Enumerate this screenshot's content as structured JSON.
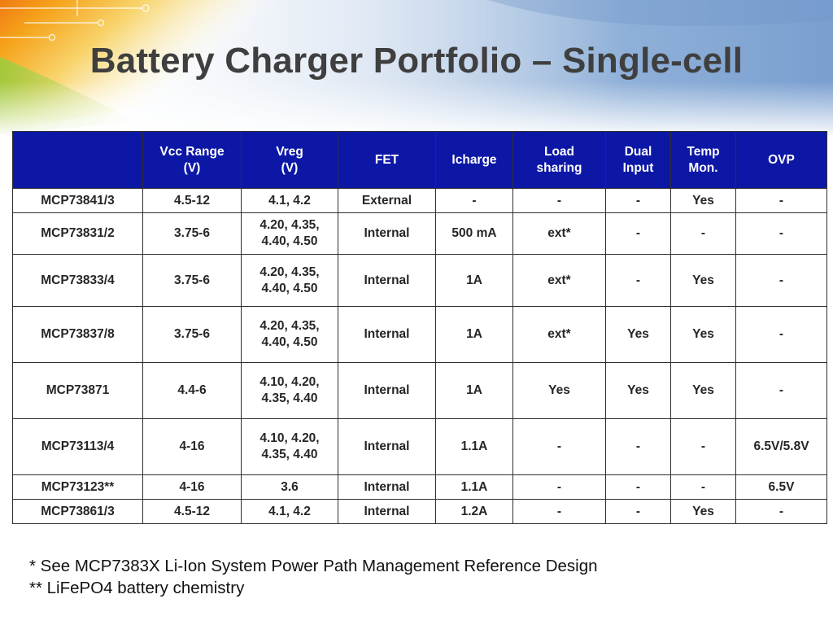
{
  "slide": {
    "title": "Battery Charger Portfolio – Single-cell"
  },
  "table": {
    "headers": [
      [
        "",
        ""
      ],
      [
        "Vcc Range",
        "(V)"
      ],
      [
        "Vreg",
        "(V)"
      ],
      [
        "FET",
        ""
      ],
      [
        "Icharge",
        ""
      ],
      [
        "Load",
        "sharing"
      ],
      [
        "Dual",
        "Input"
      ],
      [
        "Temp",
        "Mon."
      ],
      [
        "OVP",
        ""
      ]
    ],
    "rows": [
      [
        "MCP73841/3",
        "4.5-12",
        "4.1, 4.2",
        "External",
        "-",
        "-",
        "-",
        "Yes",
        "-"
      ],
      [
        "MCP73831/2",
        "3.75-6",
        "4.20, 4.35,\n4.40, 4.50",
        "Internal",
        "500 mA",
        "ext*",
        "-",
        "-",
        "-"
      ],
      [
        "MCP73833/4",
        "3.75-6",
        "4.20, 4.35,\n4.40, 4.50",
        "Internal",
        "1A",
        "ext*",
        "-",
        "Yes",
        "-"
      ],
      [
        "MCP73837/8",
        "3.75-6",
        "4.20, 4.35,\n4.40, 4.50",
        "Internal",
        "1A",
        "ext*",
        "Yes",
        "Yes",
        "-"
      ],
      [
        "MCP73871",
        "4.4-6",
        "4.10, 4.20,\n4.35, 4.40",
        "Internal",
        "1A",
        "Yes",
        "Yes",
        "Yes",
        "-"
      ],
      [
        "MCP73113/4",
        "4-16",
        "4.10, 4.20,\n4.35, 4.40",
        "Internal",
        "1.1A",
        "-",
        "-",
        "-",
        "6.5V/5.8V"
      ],
      [
        "MCP73123**",
        "4-16",
        "3.6",
        "Internal",
        "1.1A",
        "-",
        "-",
        "-",
        "6.5V"
      ],
      [
        "MCP73861/3",
        "4.5-12",
        "4.1, 4.2",
        "Internal",
        "1.2A",
        "-",
        "-",
        "Yes",
        "-"
      ]
    ]
  },
  "footnotes": [
    "* See MCP7383X Li-Ion System Power Path Management Reference Design",
    "** LiFePO4 battery chemistry"
  ],
  "colors": {
    "header_bg": "#0d17a6",
    "title_text": "#3f3f3f"
  }
}
